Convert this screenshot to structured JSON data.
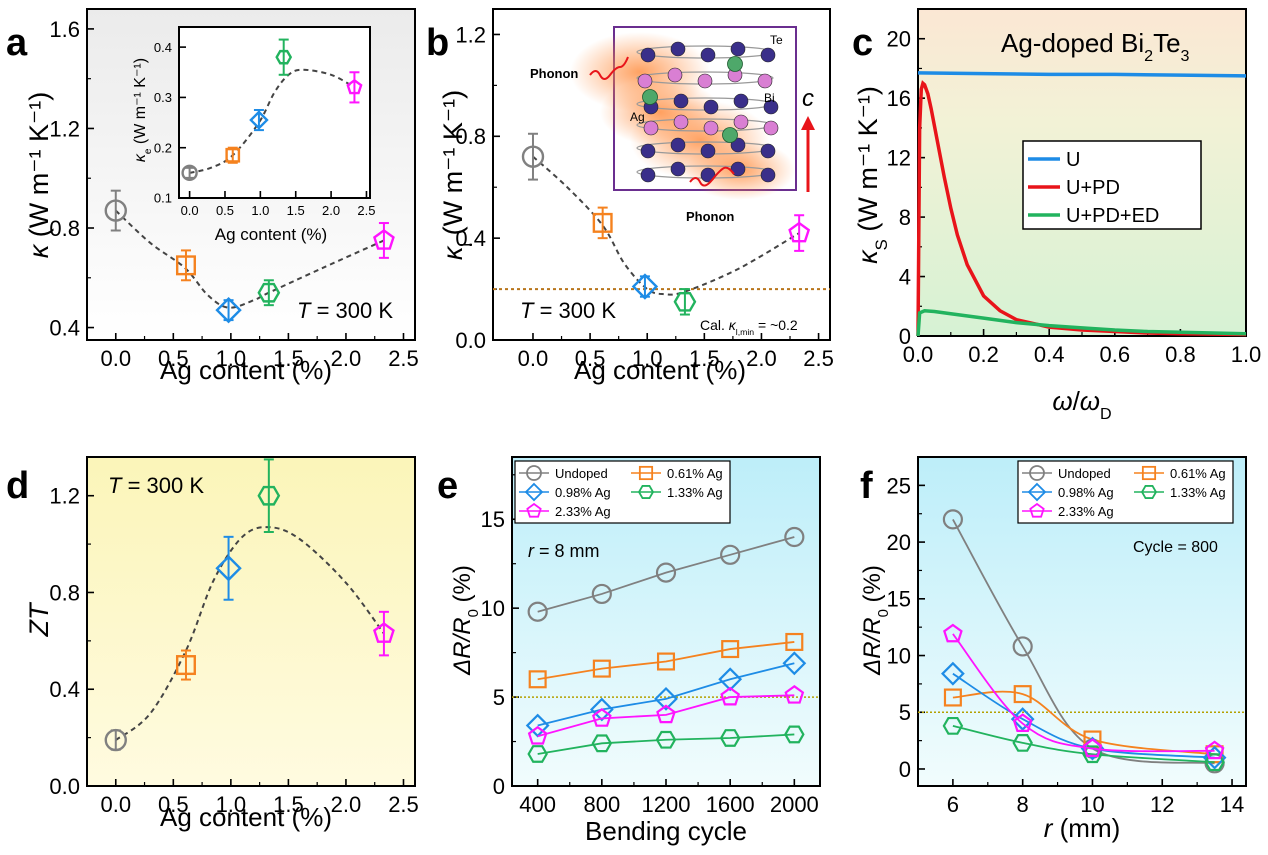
{
  "colors": {
    "gray": "#808080",
    "orange": "#f5821f",
    "blue": "#1e8ce6",
    "green": "#22b35e",
    "magenta": "#ff14ff",
    "red": "#e8141a",
    "brown": "#b8741a",
    "olive": "#b4a000",
    "purple": "#6a2e8f"
  },
  "chart_data": [
    {
      "panel": "a",
      "type": "scatter",
      "xlabel": "Ag content (%)",
      "ylabel_sym": "κ",
      "ylabel_unit": "(W m⁻¹ K⁻¹)",
      "xlim": [
        -0.25,
        2.6
      ],
      "ylim": [
        0.35,
        1.68
      ],
      "xticks": [
        "0.0",
        "0.5",
        "1.0",
        "1.5",
        "2.0",
        "2.5"
      ],
      "yticks": [
        "0.4",
        "0.8",
        "1.2",
        "1.6"
      ],
      "annotation_sym": "T",
      "annotation_rest": " = 300 K",
      "points": [
        {
          "x": 0.0,
          "y": 0.87,
          "err": 0.08,
          "marker": "circle",
          "color": "gray"
        },
        {
          "x": 0.61,
          "y": 0.65,
          "err": 0.06,
          "marker": "square",
          "color": "orange"
        },
        {
          "x": 0.98,
          "y": 0.47,
          "err": 0.04,
          "marker": "diamond",
          "color": "blue"
        },
        {
          "x": 1.33,
          "y": 0.54,
          "err": 0.05,
          "marker": "hexagon",
          "color": "green"
        },
        {
          "x": 2.33,
          "y": 0.75,
          "err": 0.07,
          "marker": "pentagon",
          "color": "magenta"
        }
      ],
      "trend": [
        [
          0,
          0.87
        ],
        [
          0.3,
          0.74
        ],
        [
          0.6,
          0.64
        ],
        [
          0.8,
          0.53
        ],
        [
          0.98,
          0.48
        ],
        [
          1.2,
          0.51
        ],
        [
          1.33,
          0.54
        ],
        [
          1.8,
          0.64
        ],
        [
          2.33,
          0.75
        ]
      ],
      "inset": {
        "xlabel": "Ag content (%)",
        "ylabel_sym": "κ",
        "ylabel_sub": "e",
        "ylabel_unit": " (W m⁻¹ K⁻¹)",
        "xlim": [
          -0.15,
          2.55
        ],
        "ylim": [
          0.1,
          0.44
        ],
        "xticks": [
          "0.0",
          "0.5",
          "1.0",
          "1.5",
          "2.0",
          "2.5"
        ],
        "yticks": [
          "0.1",
          "0.2",
          "0.3",
          "0.4"
        ],
        "points": [
          {
            "x": 0.0,
            "y": 0.15,
            "err": 0.01,
            "marker": "circle",
            "color": "gray"
          },
          {
            "x": 0.61,
            "y": 0.185,
            "err": 0.015,
            "marker": "square",
            "color": "orange"
          },
          {
            "x": 0.98,
            "y": 0.255,
            "err": 0.02,
            "marker": "diamond",
            "color": "blue"
          },
          {
            "x": 1.33,
            "y": 0.38,
            "err": 0.035,
            "marker": "hexagon",
            "color": "green"
          },
          {
            "x": 2.33,
            "y": 0.32,
            "err": 0.03,
            "marker": "pentagon",
            "color": "magenta"
          }
        ],
        "trend": [
          [
            0,
            0.15
          ],
          [
            0.3,
            0.16
          ],
          [
            0.61,
            0.185
          ],
          [
            0.98,
            0.25
          ],
          [
            1.2,
            0.31
          ],
          [
            1.4,
            0.345
          ],
          [
            1.6,
            0.355
          ],
          [
            2.0,
            0.345
          ],
          [
            2.33,
            0.32
          ]
        ]
      }
    },
    {
      "panel": "b",
      "type": "scatter",
      "xlabel": "Ag content (%)",
      "ylabel_sym": "κ",
      "ylabel_sub": "l",
      "ylabel_unit": " (W m⁻¹ K⁻¹)",
      "xlim": [
        -0.35,
        2.6
      ],
      "ylim": [
        0,
        1.3
      ],
      "xticks": [
        "0.0",
        "0.5",
        "1.0",
        "1.5",
        "2.0",
        "2.5"
      ],
      "yticks": [
        "0.0",
        "0.4",
        "0.8",
        "1.2"
      ],
      "annotation_sym": "T",
      "annotation_rest": " = 300 K",
      "hline": 0.2,
      "hline_label_pre": "Cal. ",
      "hline_label_sym": "κ",
      "hline_label_sub": "l,min",
      "hline_label_post": " = ~0.2",
      "points": [
        {
          "x": 0.0,
          "y": 0.72,
          "err": 0.09,
          "marker": "circle",
          "color": "gray"
        },
        {
          "x": 0.61,
          "y": 0.46,
          "err": 0.06,
          "marker": "square",
          "color": "orange"
        },
        {
          "x": 0.98,
          "y": 0.21,
          "err": 0.04,
          "marker": "diamond",
          "color": "blue"
        },
        {
          "x": 1.33,
          "y": 0.15,
          "err": 0.05,
          "marker": "hexagon",
          "color": "green"
        },
        {
          "x": 2.33,
          "y": 0.42,
          "err": 0.07,
          "marker": "pentagon",
          "color": "magenta"
        }
      ],
      "trend": [
        [
          0,
          0.72
        ],
        [
          0.3,
          0.6
        ],
        [
          0.61,
          0.45
        ],
        [
          0.8,
          0.3
        ],
        [
          1.0,
          0.2
        ],
        [
          1.15,
          0.18
        ],
        [
          1.33,
          0.19
        ],
        [
          1.8,
          0.28
        ],
        [
          2.33,
          0.42
        ]
      ],
      "inset_labels": {
        "phonon_1": "Phonon",
        "phonon_2": "Phonon",
        "te": "Te",
        "ag": "Ag",
        "bi": "Bi",
        "axis": "c"
      }
    },
    {
      "panel": "c",
      "type": "line",
      "xlabel_sym": "ω",
      "xlabel_mid": "/",
      "xlabel_sym2": "ω",
      "xlabel_sub": "D",
      "ylabel_sym": "κ",
      "ylabel_sub": "S",
      "ylabel_unit": " (W m⁻¹ K⁻¹)",
      "xlim": [
        0,
        1
      ],
      "ylim": [
        0,
        22
      ],
      "xticks": [
        "0.0",
        "0.2",
        "0.4",
        "0.6",
        "0.8",
        "1.0"
      ],
      "yticks": [
        "0",
        "4",
        "8",
        "12",
        "16",
        "20"
      ],
      "title_pre": "Ag-doped Bi",
      "title_sub1": "2",
      "title_mid": "Te",
      "title_sub2": "3",
      "series": [
        {
          "name": "U",
          "color": "blue",
          "x": [
            0,
            0.2,
            0.4,
            0.6,
            0.8,
            1.0
          ],
          "y": [
            17.7,
            17.65,
            17.6,
            17.6,
            17.55,
            17.5
          ]
        },
        {
          "name": "U+PD",
          "color": "red",
          "x": [
            0,
            0.005,
            0.01,
            0.015,
            0.02,
            0.03,
            0.04,
            0.06,
            0.08,
            0.1,
            0.12,
            0.15,
            0.2,
            0.25,
            0.3,
            0.4,
            0.5,
            0.6,
            0.7,
            0.8,
            1.0
          ],
          "y": [
            0,
            14,
            16.6,
            17.0,
            16.9,
            16.3,
            15.3,
            13.0,
            10.7,
            8.6,
            6.8,
            4.8,
            2.7,
            1.7,
            1.1,
            0.6,
            0.4,
            0.3,
            0.2,
            0.15,
            0.1
          ]
        },
        {
          "name": "U+PD+ED",
          "color": "green",
          "x": [
            0,
            0.005,
            0.02,
            0.05,
            0.1,
            0.2,
            0.3,
            0.4,
            0.5,
            0.6,
            0.7,
            0.8,
            0.9,
            1.0
          ],
          "y": [
            0,
            1.55,
            1.7,
            1.65,
            1.5,
            1.2,
            0.9,
            0.7,
            0.55,
            0.4,
            0.3,
            0.25,
            0.2,
            0.15
          ]
        }
      ]
    },
    {
      "panel": "d",
      "type": "scatter",
      "xlabel": "Ag content (%)",
      "ylabel": "ZT",
      "xlim": [
        -0.25,
        2.6
      ],
      "ylim": [
        0,
        1.36
      ],
      "xticks": [
        "0.0",
        "0.5",
        "1.0",
        "1.5",
        "2.0",
        "2.5"
      ],
      "yticks": [
        "0.0",
        "0.4",
        "0.8",
        "1.2"
      ],
      "annotation_sym": "T",
      "annotation_rest": " = 300 K",
      "points": [
        {
          "x": 0.0,
          "y": 0.19,
          "err": 0.04,
          "marker": "circle",
          "color": "gray"
        },
        {
          "x": 0.61,
          "y": 0.5,
          "err": 0.06,
          "marker": "square",
          "color": "orange"
        },
        {
          "x": 0.98,
          "y": 0.9,
          "err": 0.13,
          "marker": "diamond",
          "color": "blue"
        },
        {
          "x": 1.33,
          "y": 1.2,
          "err": 0.15,
          "marker": "hexagon",
          "color": "green"
        },
        {
          "x": 2.33,
          "y": 0.63,
          "err": 0.09,
          "marker": "pentagon",
          "color": "magenta"
        }
      ],
      "trend": [
        [
          0,
          0.19
        ],
        [
          0.3,
          0.3
        ],
        [
          0.61,
          0.56
        ],
        [
          0.85,
          0.85
        ],
        [
          1.1,
          1.03
        ],
        [
          1.33,
          1.07
        ],
        [
          1.6,
          1.02
        ],
        [
          2.0,
          0.84
        ],
        [
          2.33,
          0.63
        ]
      ]
    },
    {
      "panel": "e",
      "type": "line",
      "xlabel": "Bending cycle",
      "ylabel_sym": "ΔR/R",
      "ylabel_sub": "0",
      "ylabel_unit": " (%)",
      "xlim": [
        240,
        2160
      ],
      "ylim": [
        0,
        18.5
      ],
      "xticks": [
        "400",
        "800",
        "1200",
        "1600",
        "2000"
      ],
      "yticks": [
        "0",
        "5",
        "10",
        "15"
      ],
      "hline": 5,
      "annotation_sym": "r",
      "annotation_rest": " = 8 mm",
      "x": [
        400,
        800,
        1200,
        1600,
        2000
      ],
      "series": [
        {
          "name": "Undoped",
          "marker": "circle",
          "color": "gray",
          "y": [
            9.8,
            10.8,
            12.0,
            13.0,
            14.0
          ]
        },
        {
          "name": "0.61% Ag",
          "marker": "square",
          "color": "orange",
          "y": [
            6.0,
            6.6,
            7.0,
            7.7,
            8.1
          ]
        },
        {
          "name": "0.98% Ag",
          "marker": "diamond",
          "color": "blue",
          "y": [
            3.4,
            4.3,
            4.9,
            6.0,
            6.9
          ]
        },
        {
          "name": "1.33% Ag",
          "marker": "hexagon",
          "color": "green",
          "y": [
            1.8,
            2.4,
            2.6,
            2.7,
            2.9
          ]
        },
        {
          "name": "2.33% Ag",
          "marker": "pentagon",
          "color": "magenta",
          "y": [
            2.8,
            3.8,
            4.0,
            5.0,
            5.1
          ]
        }
      ]
    },
    {
      "panel": "f",
      "type": "line",
      "xlabel_sym": "r",
      "xlabel_rest": " (mm)",
      "ylabel_sym": "ΔR/R",
      "ylabel_sub": "0",
      "ylabel_unit": " (%)",
      "xlim": [
        5,
        14.4
      ],
      "ylim": [
        -1.5,
        27.5
      ],
      "xticks": [
        "6",
        "8",
        "10",
        "12",
        "14"
      ],
      "yticks": [
        "0",
        "5",
        "10",
        "15",
        "20",
        "25"
      ],
      "hline": 5,
      "annotation": "Cycle = 800",
      "x": [
        6,
        8,
        10,
        13.5
      ],
      "series": [
        {
          "name": "Undoped",
          "marker": "circle",
          "color": "gray",
          "y": [
            22.0,
            10.8,
            1.8,
            0.5
          ]
        },
        {
          "name": "0.61% Ag",
          "marker": "square",
          "color": "orange",
          "y": [
            6.3,
            6.6,
            2.6,
            1.3
          ]
        },
        {
          "name": "0.98% Ag",
          "marker": "diamond",
          "color": "blue",
          "y": [
            8.4,
            4.4,
            1.8,
            1.0
          ]
        },
        {
          "name": "1.33% Ag",
          "marker": "hexagon",
          "color": "green",
          "y": [
            3.8,
            2.3,
            1.3,
            0.6
          ]
        },
        {
          "name": "2.33% Ag",
          "marker": "pentagon",
          "color": "magenta",
          "y": [
            11.9,
            4.0,
            1.8,
            1.6
          ]
        }
      ]
    }
  ]
}
